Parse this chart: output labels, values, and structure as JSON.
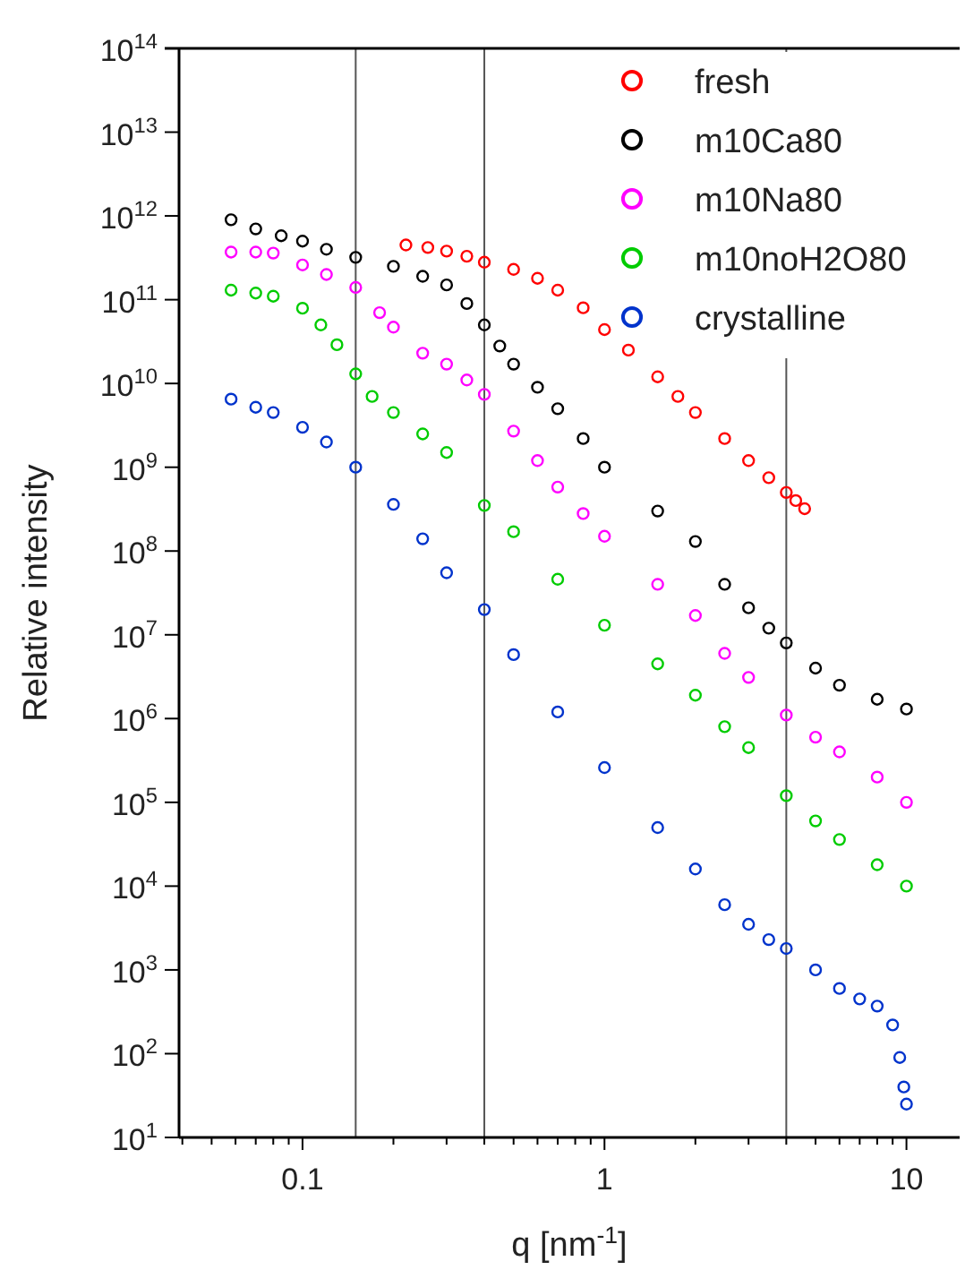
{
  "chart_data": {
    "type": "scatter",
    "xlabel": "q [nm$^{-1}$]",
    "ylabel": "Relative intensity",
    "log": "xy",
    "grid": false,
    "legend": "top right",
    "marker": "circle",
    "xlim": [
      0.039,
      15
    ],
    "ylim": [
      10,
      100000000000000.0
    ],
    "xticks": [
      {
        "value": 0.04,
        "label": null
      },
      {
        "value": 0.05,
        "label": null
      },
      {
        "value": 0.06,
        "label": null
      },
      {
        "value": 0.07,
        "label": null
      },
      {
        "value": 0.08,
        "label": null
      },
      {
        "value": 0.09,
        "label": null
      },
      {
        "value": 0.1,
        "label": "0.1"
      },
      {
        "value": 0.2,
        "label": null
      },
      {
        "value": 0.3,
        "label": null
      },
      {
        "value": 0.4,
        "label": null
      },
      {
        "value": 0.5,
        "label": null
      },
      {
        "value": 0.6,
        "label": null
      },
      {
        "value": 0.7,
        "label": null
      },
      {
        "value": 0.8,
        "label": null
      },
      {
        "value": 0.9,
        "label": null
      },
      {
        "value": 1,
        "label": "1"
      },
      {
        "value": 2,
        "label": null
      },
      {
        "value": 3,
        "label": null
      },
      {
        "value": 4,
        "label": null
      },
      {
        "value": 5,
        "label": null
      },
      {
        "value": 6,
        "label": null
      },
      {
        "value": 7,
        "label": null
      },
      {
        "value": 8,
        "label": null
      },
      {
        "value": 9,
        "label": null
      },
      {
        "value": 10,
        "label": "10"
      }
    ],
    "yticks": [
      {
        "value": 10,
        "label": "10$^{1}$"
      },
      {
        "value": 100,
        "label": "10$^{2}$"
      },
      {
        "value": 1000,
        "label": "10$^{3}$"
      },
      {
        "value": 10000,
        "label": "10$^{4}$"
      },
      {
        "value": 100000,
        "label": "10$^{5}$"
      },
      {
        "value": 1000000,
        "label": "10$^{6}$"
      },
      {
        "value": 10000000,
        "label": "10$^{7}$"
      },
      {
        "value": 100000000,
        "label": "10$^{8}$"
      },
      {
        "value": 1000000000,
        "label": "10$^{9}$"
      },
      {
        "value": 10000000000,
        "label": "10$^{10}$"
      },
      {
        "value": 100000000000,
        "label": "10$^{11}$"
      },
      {
        "value": 1000000000000,
        "label": "10$^{12}$"
      },
      {
        "value": 10000000000000,
        "label": "10$^{13}$"
      },
      {
        "value": 100000000000000,
        "label": "10$^{14}$"
      }
    ],
    "ref_lines": [
      {
        "axis": "x",
        "value": 0.15,
        "color": "#555555"
      },
      {
        "axis": "x",
        "value": 0.4,
        "color": "#555555"
      },
      {
        "axis": "x",
        "value": 4,
        "color": "#555555"
      }
    ],
    "series": [
      {
        "name": "fresh",
        "color": "#ff0000",
        "x": [
          0.22,
          0.26,
          0.3,
          0.35,
          0.4,
          0.5,
          0.6,
          0.7,
          0.85,
          1,
          1.2,
          1.5,
          1.75,
          2,
          2.5,
          3,
          3.5,
          4,
          4.3,
          4.6
        ],
        "values": [
          450000000000.0,
          420000000000.0,
          380000000000.0,
          330000000000.0,
          280000000000.0,
          230000000000.0,
          180000000000.0,
          130000000000.0,
          80000000000.0,
          44000000000.0,
          25000000000.0,
          12000000000.0,
          7000000000.0,
          4500000000.0,
          2200000000.0,
          1200000000.0,
          750000000.0,
          500000000.0,
          400000000.0,
          320000000.0
        ]
      },
      {
        "name": "m10Ca80",
        "color": "#000000",
        "x": [
          0.058,
          0.07,
          0.085,
          0.1,
          0.12,
          0.15,
          0.2,
          0.25,
          0.3,
          0.35,
          0.4,
          0.45,
          0.5,
          0.6,
          0.7,
          0.85,
          1,
          1.5,
          2,
          2.5,
          3,
          3.5,
          4,
          5,
          6,
          8,
          10
        ],
        "values": [
          900000000000.0,
          700000000000.0,
          580000000000.0,
          500000000000.0,
          400000000000.0,
          320000000000.0,
          250000000000.0,
          190000000000.0,
          150000000000.0,
          90000000000.0,
          50000000000.0,
          28000000000.0,
          17000000000.0,
          9000000000.0,
          5000000000.0,
          2200000000.0,
          1000000000.0,
          300000000.0,
          130000000.0,
          40000000.0,
          21000000.0,
          12000000.0,
          8000000.0,
          4000000.0,
          2500000.0,
          1700000.0,
          1300000.0
        ]
      },
      {
        "name": "m10Na80",
        "color": "#ff00ff",
        "x": [
          0.058,
          0.07,
          0.08,
          0.1,
          0.12,
          0.15,
          0.18,
          0.2,
          0.25,
          0.3,
          0.35,
          0.4,
          0.5,
          0.6,
          0.7,
          0.85,
          1,
          1.5,
          2,
          2.5,
          3,
          4,
          5,
          6,
          8,
          10
        ],
        "values": [
          370000000000.0,
          370000000000.0,
          360000000000.0,
          260000000000.0,
          200000000000.0,
          140000000000.0,
          70000000000.0,
          47000000000.0,
          23000000000.0,
          17000000000.0,
          11000000000.0,
          7400000000.0,
          2700000000.0,
          1200000000.0,
          580000000.0,
          280000000.0,
          150000000.0,
          40000000.0,
          17000000.0,
          6000000.0,
          3100000.0,
          1100000.0,
          600000.0,
          400000.0,
          200000.0,
          100000.0
        ]
      },
      {
        "name": "m10noH2O80",
        "color": "#00cc00",
        "x": [
          0.058,
          0.07,
          0.08,
          0.1,
          0.115,
          0.13,
          0.15,
          0.17,
          0.2,
          0.25,
          0.3,
          0.4,
          0.5,
          0.7,
          1,
          1.5,
          2,
          2.5,
          3,
          4,
          5,
          6,
          8,
          10
        ],
        "values": [
          130000000000.0,
          120000000000.0,
          110000000000.0,
          79000000000.0,
          50000000000.0,
          29000000000.0,
          13000000000.0,
          7000000000.0,
          4500000000.0,
          2500000000.0,
          1500000000.0,
          350000000.0,
          170000000.0,
          46000000.0,
          13000000.0,
          4500000.0,
          1900000.0,
          800000.0,
          450000.0,
          120000.0,
          60000.0,
          36000.0,
          18000.0,
          10000.0
        ]
      },
      {
        "name": "crystalline",
        "color": "#0033cc",
        "x": [
          0.058,
          0.07,
          0.08,
          0.1,
          0.12,
          0.15,
          0.2,
          0.25,
          0.3,
          0.4,
          0.5,
          0.7,
          1,
          1.5,
          2,
          2.5,
          3,
          3.5,
          4,
          5,
          6,
          7,
          8,
          9,
          9.5,
          9.8,
          10
        ],
        "values": [
          6500000000.0,
          5200000000.0,
          4500000000.0,
          3000000000.0,
          2000000000.0,
          1000000000.0,
          360000000.0,
          140000000.0,
          55000000.0,
          20000000.0,
          5800000.0,
          1200000.0,
          260000.0,
          50000.0,
          16000.0,
          6000.0,
          3500.0,
          2300.0,
          1800.0,
          1000.0,
          600.0,
          450.0,
          370.0,
          220.0,
          90.0,
          40.0,
          25.0
        ]
      }
    ]
  }
}
